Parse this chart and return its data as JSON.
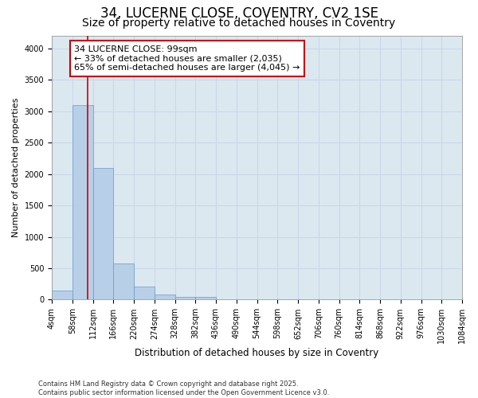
{
  "title": "34, LUCERNE CLOSE, COVENTRY, CV2 1SE",
  "subtitle": "Size of property relative to detached houses in Coventry",
  "xlabel": "Distribution of detached houses by size in Coventry",
  "ylabel": "Number of detached properties",
  "bar_bins": [
    4,
    58,
    112,
    166,
    220,
    274,
    328,
    382,
    436,
    490,
    544,
    598,
    652,
    706,
    760,
    814,
    868,
    922,
    976,
    1030,
    1084
  ],
  "bar_heights": [
    150,
    3100,
    2100,
    580,
    210,
    80,
    50,
    50,
    0,
    0,
    0,
    0,
    0,
    0,
    0,
    0,
    0,
    0,
    0,
    0
  ],
  "bar_color": "#b8cfe8",
  "bar_edge_color": "#6699cc",
  "grid_color": "#c8d8ea",
  "plot_bg_color": "#dce8f0",
  "figure_bg_color": "#ffffff",
  "property_size": 99,
  "vline_color": "#cc0000",
  "annotation_line1": "34 LUCERNE CLOSE: 99sqm",
  "annotation_line2": "← 33% of detached houses are smaller (2,035)",
  "annotation_line3": "65% of semi-detached houses are larger (4,045) →",
  "annotation_box_color": "#ffffff",
  "annotation_border_color": "#cc0000",
  "ylim": [
    0,
    4200
  ],
  "yticks": [
    0,
    500,
    1000,
    1500,
    2000,
    2500,
    3000,
    3500,
    4000
  ],
  "footer": "Contains HM Land Registry data © Crown copyright and database right 2025.\nContains public sector information licensed under the Open Government Licence v3.0.",
  "title_fontsize": 12,
  "subtitle_fontsize": 10,
  "tick_label_fontsize": 7,
  "ylabel_fontsize": 8,
  "xlabel_fontsize": 8.5,
  "annotation_fontsize": 8,
  "footer_fontsize": 6
}
